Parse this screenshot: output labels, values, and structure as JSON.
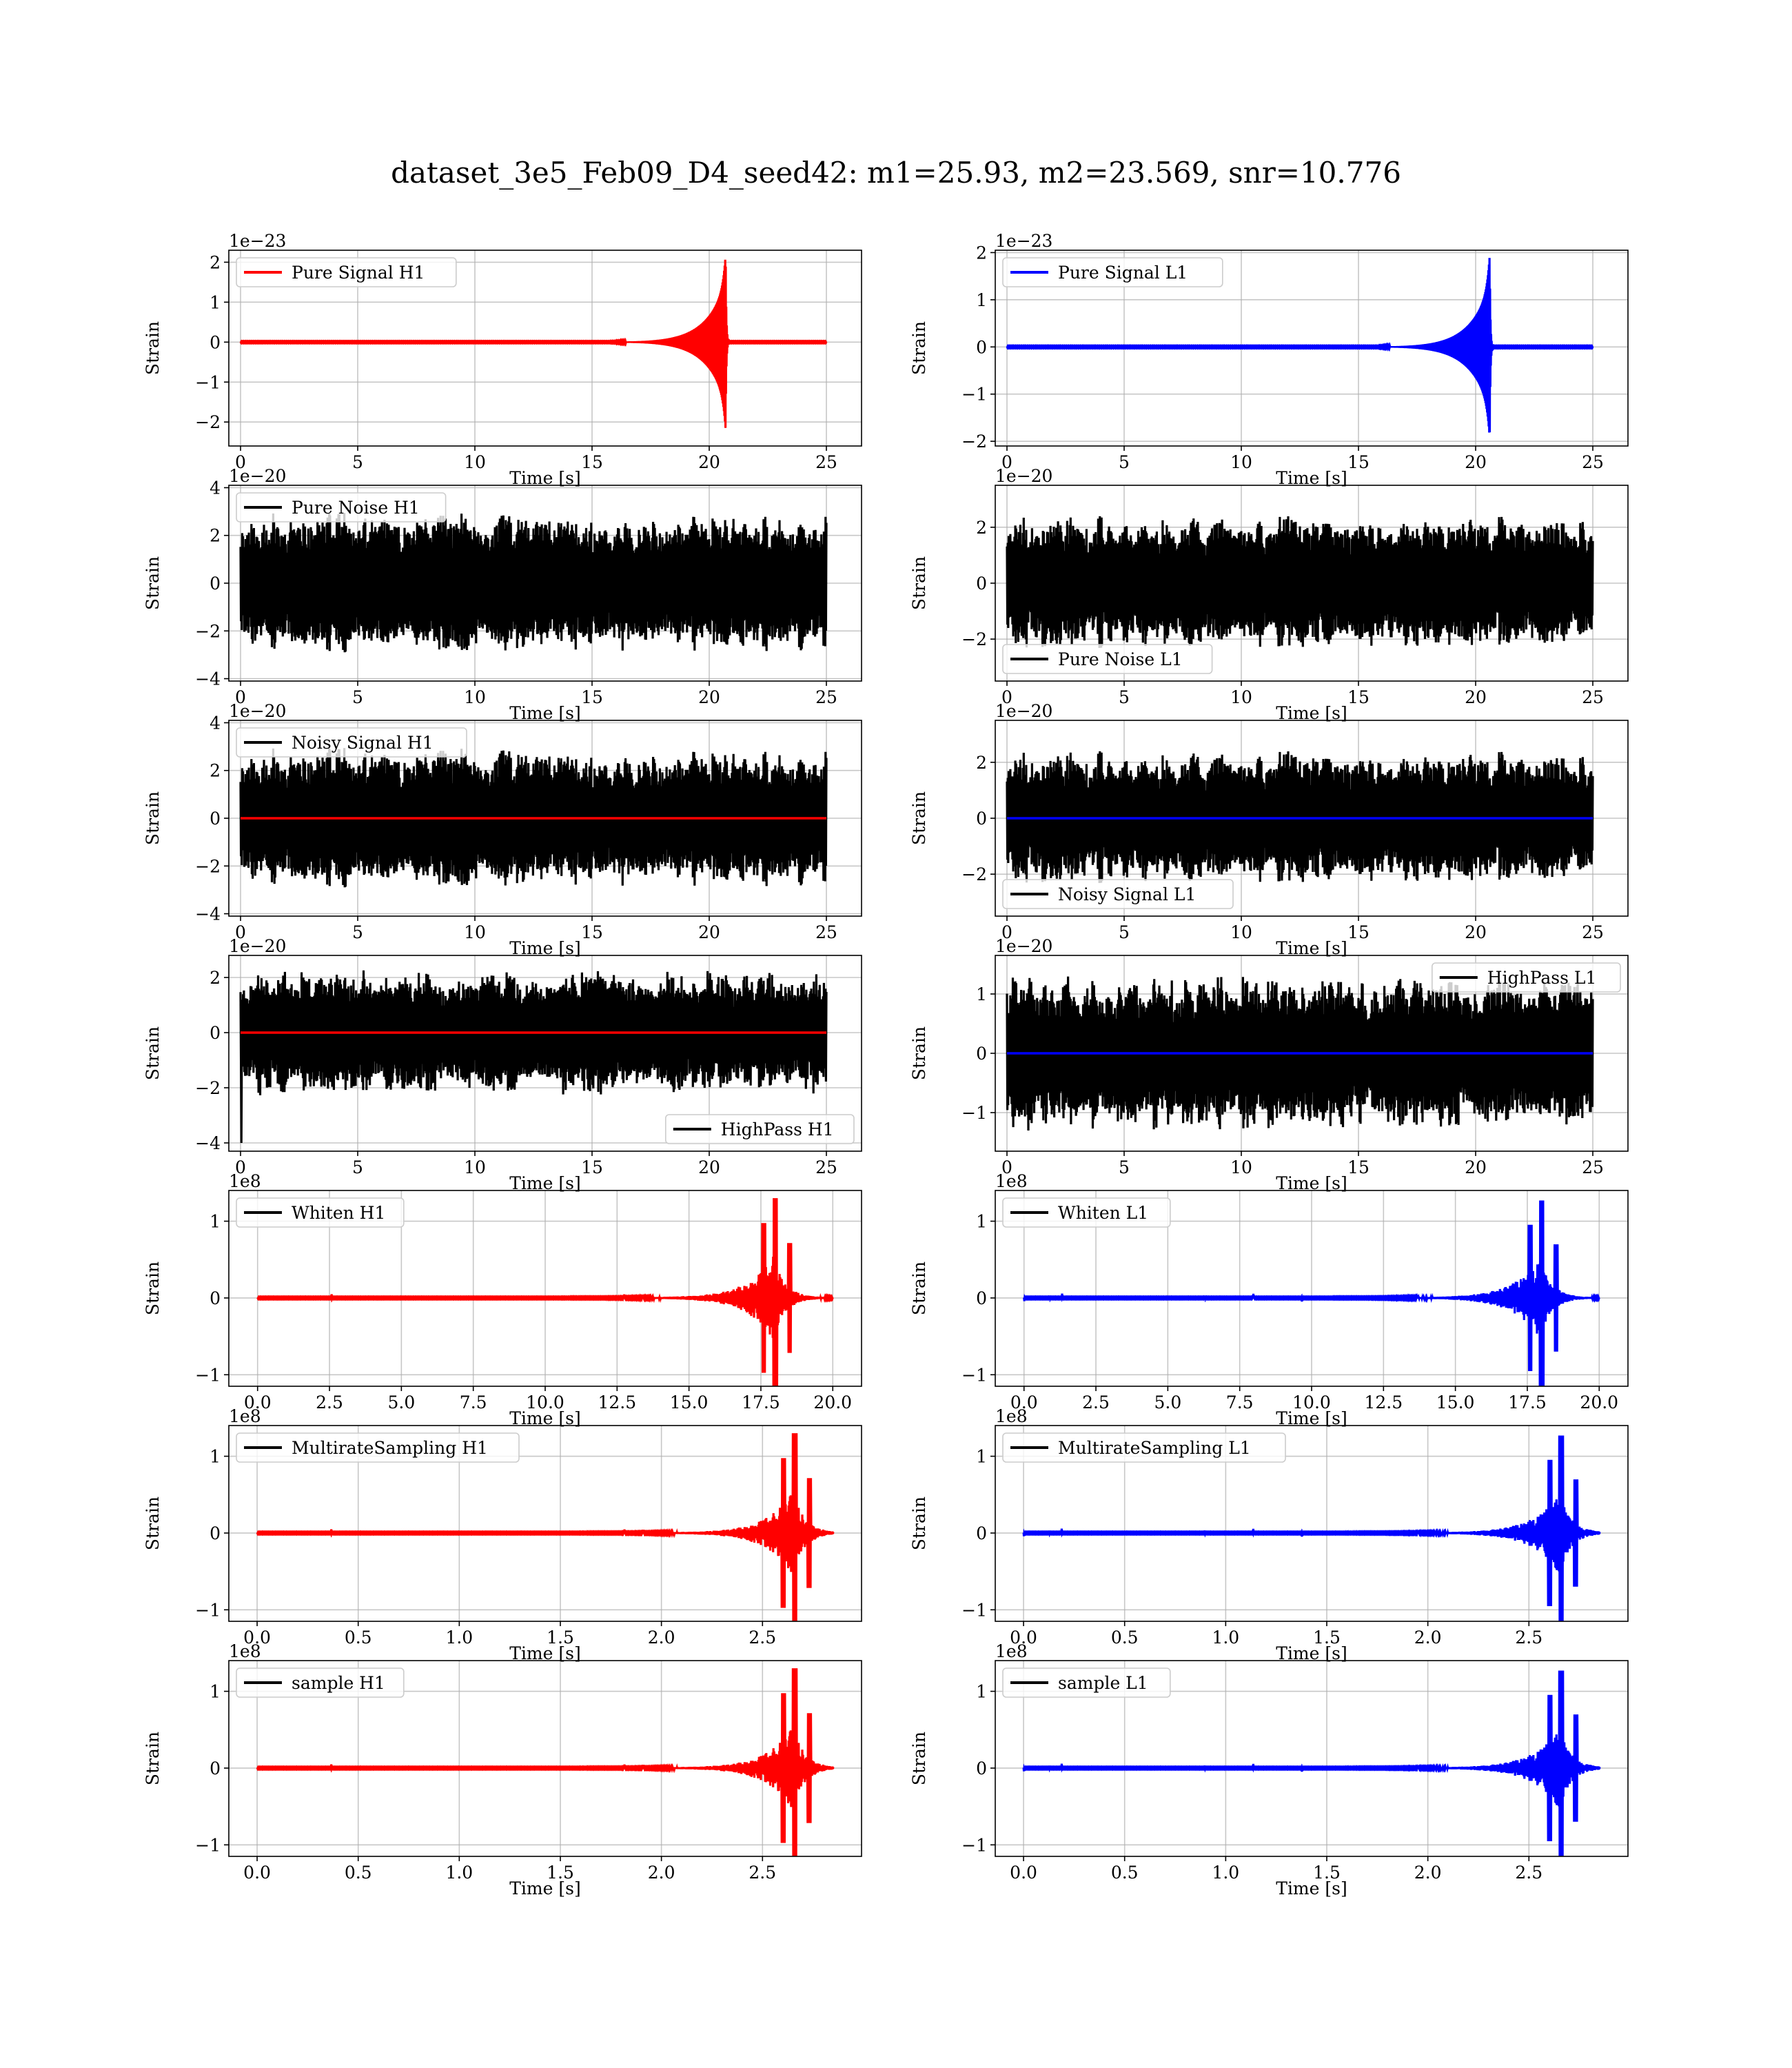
{
  "figure": {
    "title": "dataset_3e5_Feb09_D4_seed42: m1=25.93, m2=23.569, snr=10.776",
    "colors": {
      "H1": "#ff0000",
      "L1": "#0000ff",
      "noise": "#000000"
    }
  },
  "chart_data": [
    {
      "id": "pure-signal-h1",
      "type": "line",
      "ylabel": "Strain",
      "xlabel": "Time [s]",
      "offset_text": "1e−23",
      "legend": "Pure Signal H1",
      "legend_color": "#ff0000",
      "legend_loc": "upper-left",
      "xlim": [
        -0.5,
        26.5
      ],
      "ylim": [
        -2.6,
        2.3
      ],
      "xticks": [
        0,
        5,
        10,
        15,
        20,
        25
      ],
      "xticklabels": [
        "0",
        "5",
        "10",
        "15",
        "20",
        "25"
      ],
      "yticks": [
        -2,
        -1,
        0,
        1,
        2
      ],
      "yticklabels": [
        "−2",
        "−1",
        "0",
        "1",
        "2"
      ],
      "signal": {
        "color": "#ff0000",
        "kind": "chirp",
        "t0": 0,
        "t1": 25,
        "tc": 20.7,
        "peak": 2.2,
        "mode": "chirp-end"
      }
    },
    {
      "id": "pure-signal-l1",
      "type": "line",
      "ylabel": "Strain",
      "xlabel": "Time [s]",
      "offset_text": "1e−23",
      "legend": "Pure Signal L1",
      "legend_color": "#0000ff",
      "legend_loc": "upper-left",
      "xlim": [
        -0.5,
        26.5
      ],
      "ylim": [
        -2.1,
        2.05
      ],
      "xticks": [
        0,
        5,
        10,
        15,
        20,
        25
      ],
      "xticklabels": [
        "0",
        "5",
        "10",
        "15",
        "20",
        "25"
      ],
      "yticks": [
        -2,
        -1,
        0,
        1,
        2
      ],
      "yticklabels": [
        "−2",
        "−1",
        "0",
        "1",
        "2"
      ],
      "signal": {
        "color": "#0000ff",
        "kind": "chirp",
        "t0": 0,
        "t1": 25,
        "tc": 20.6,
        "peak": 1.95,
        "mode": "chirp-end"
      }
    },
    {
      "id": "pure-noise-h1",
      "type": "line",
      "ylabel": "Strain",
      "xlabel": "Time [s]",
      "offset_text": "1e−20",
      "legend": "Pure Noise H1",
      "legend_color": "#000000",
      "legend_loc": "upper-left",
      "xlim": [
        -0.5,
        26.5
      ],
      "ylim": [
        -4.1,
        4.1
      ],
      "xticks": [
        0,
        5,
        10,
        15,
        20,
        25
      ],
      "xticklabels": [
        "0",
        "5",
        "10",
        "15",
        "20",
        "25"
      ],
      "yticks": [
        -4,
        -2,
        0,
        2,
        4
      ],
      "yticklabels": [
        "−4",
        "−2",
        "0",
        "2",
        "4"
      ],
      "noise": {
        "t0": 0,
        "t1": 25,
        "amp": 2.7,
        "seed": 11
      }
    },
    {
      "id": "pure-noise-l1",
      "type": "line",
      "ylabel": "Strain",
      "xlabel": "Time [s]",
      "offset_text": "1e−20",
      "legend": "Pure Noise L1",
      "legend_color": "#000000",
      "legend_loc": "lower-left",
      "xlim": [
        -0.5,
        26.5
      ],
      "ylim": [
        -3.5,
        3.5
      ],
      "xticks": [
        0,
        5,
        10,
        15,
        20,
        25
      ],
      "xticklabels": [
        "0",
        "5",
        "10",
        "15",
        "20",
        "25"
      ],
      "yticks": [
        -2,
        0,
        2
      ],
      "yticklabels": [
        "−2",
        "0",
        "2"
      ],
      "noise": {
        "t0": 0,
        "t1": 25,
        "amp": 2.2,
        "seed": 23
      }
    },
    {
      "id": "noisy-signal-h1",
      "type": "line",
      "ylabel": "Strain",
      "xlabel": "Time [s]",
      "offset_text": "1e−20",
      "legend": "Noisy Signal H1",
      "legend_color": "#000000",
      "legend_loc": "upper-left",
      "xlim": [
        -0.5,
        26.5
      ],
      "ylim": [
        -4.1,
        4.1
      ],
      "xticks": [
        0,
        5,
        10,
        15,
        20,
        25
      ],
      "xticklabels": [
        "0",
        "5",
        "10",
        "15",
        "20",
        "25"
      ],
      "yticks": [
        -4,
        -2,
        0,
        2,
        4
      ],
      "yticklabels": [
        "−4",
        "−2",
        "0",
        "2",
        "4"
      ],
      "noise": {
        "t0": 0,
        "t1": 25,
        "amp": 2.7,
        "seed": 11
      },
      "signal": {
        "color": "#ff0000",
        "kind": "flat",
        "t0": 0,
        "t1": 25
      }
    },
    {
      "id": "noisy-signal-l1",
      "type": "line",
      "ylabel": "Strain",
      "xlabel": "Time [s]",
      "offset_text": "1e−20",
      "legend": "Noisy Signal L1",
      "legend_color": "#000000",
      "legend_loc": "lower-left",
      "xlim": [
        -0.5,
        26.5
      ],
      "ylim": [
        -3.5,
        3.5
      ],
      "xticks": [
        0,
        5,
        10,
        15,
        20,
        25
      ],
      "xticklabels": [
        "0",
        "5",
        "10",
        "15",
        "20",
        "25"
      ],
      "yticks": [
        -2,
        0,
        2
      ],
      "yticklabels": [
        "−2",
        "0",
        "2"
      ],
      "noise": {
        "t0": 0,
        "t1": 25,
        "amp": 2.2,
        "seed": 23
      },
      "signal": {
        "color": "#0000ff",
        "kind": "flat",
        "t0": 0,
        "t1": 25
      }
    },
    {
      "id": "highpass-h1",
      "type": "line",
      "ylabel": "Strain",
      "xlabel": "Time [s]",
      "offset_text": "1e−20",
      "legend": "HighPass H1",
      "legend_color": "#000000",
      "legend_loc": "lower-right",
      "xlim": [
        -0.5,
        26.5
      ],
      "ylim": [
        -4.3,
        2.8
      ],
      "xticks": [
        0,
        5,
        10,
        15,
        20,
        25
      ],
      "xticklabels": [
        "0",
        "5",
        "10",
        "15",
        "20",
        "25"
      ],
      "yticks": [
        -4,
        -2,
        0,
        2
      ],
      "yticklabels": [
        "−4",
        "−2",
        "0",
        "2"
      ],
      "noise": {
        "t0": 0,
        "t1": 25,
        "amp": 2.1,
        "seed": 37,
        "spike": -4.0
      },
      "signal": {
        "color": "#ff0000",
        "kind": "flat",
        "t0": 0,
        "t1": 25
      }
    },
    {
      "id": "highpass-l1",
      "type": "line",
      "ylabel": "Strain",
      "xlabel": "Time [s]",
      "offset_text": "1e−20",
      "legend": "HighPass L1",
      "legend_color": "#000000",
      "legend_loc": "upper-right",
      "xlim": [
        -0.5,
        26.5
      ],
      "ylim": [
        -1.65,
        1.65
      ],
      "xticks": [
        0,
        5,
        10,
        15,
        20,
        25
      ],
      "xticklabels": [
        "0",
        "5",
        "10",
        "15",
        "20",
        "25"
      ],
      "yticks": [
        -1,
        0,
        1
      ],
      "yticklabels": [
        "−1",
        "0",
        "1"
      ],
      "noise": {
        "t0": 0,
        "t1": 25,
        "amp": 1.2,
        "seed": 41
      },
      "signal": {
        "color": "#0000ff",
        "kind": "flat",
        "t0": 0,
        "t1": 25
      }
    },
    {
      "id": "whiten-h1",
      "type": "line",
      "ylabel": "Strain",
      "xlabel": "Time [s]",
      "offset_text": "1e8",
      "legend": "Whiten H1",
      "legend_color": "#000000",
      "legend_loc": "upper-left",
      "xlim": [
        -1,
        21
      ],
      "ylim": [
        -1.15,
        1.4
      ],
      "xticks": [
        0,
        2.5,
        5,
        7.5,
        10,
        12.5,
        15,
        17.5,
        20
      ],
      "xticklabels": [
        "0.0",
        "2.5",
        "5.0",
        "7.5",
        "10.0",
        "12.5",
        "15.0",
        "17.5",
        "20.0"
      ],
      "yticks": [
        -1,
        0,
        1
      ],
      "yticklabels": [
        "−1",
        "0",
        "1"
      ],
      "signal": {
        "color": "#ff0000",
        "kind": "burst",
        "t0": 0,
        "t1": 20,
        "center": 18.0,
        "peak": 1.3,
        "seed": 5
      }
    },
    {
      "id": "whiten-l1",
      "type": "line",
      "ylabel": "Strain",
      "xlabel": "Time [s]",
      "offset_text": "1e8",
      "legend": "Whiten L1",
      "legend_color": "#000000",
      "legend_loc": "upper-left",
      "xlim": [
        -1,
        21
      ],
      "ylim": [
        -1.15,
        1.4
      ],
      "xticks": [
        0,
        2.5,
        5,
        7.5,
        10,
        12.5,
        15,
        17.5,
        20
      ],
      "xticklabels": [
        "0.0",
        "2.5",
        "5.0",
        "7.5",
        "10.0",
        "12.5",
        "15.0",
        "17.5",
        "20.0"
      ],
      "yticks": [
        -1,
        0,
        1
      ],
      "yticklabels": [
        "−1",
        "0",
        "1"
      ],
      "signal": {
        "color": "#0000ff",
        "kind": "burst",
        "t0": 0,
        "t1": 20,
        "center": 18.0,
        "peak": 1.27,
        "seed": 9
      }
    },
    {
      "id": "multiratesampling-h1",
      "type": "line",
      "ylabel": "Strain",
      "xlabel": "Time [s]",
      "offset_text": "1e8",
      "legend": "MultirateSampling H1",
      "legend_color": "#000000",
      "legend_loc": "upper-left",
      "xlim": [
        -0.14,
        2.99
      ],
      "ylim": [
        -1.15,
        1.4
      ],
      "xticks": [
        0,
        0.5,
        1,
        1.5,
        2,
        2.5
      ],
      "xticklabels": [
        "0.0",
        "0.5",
        "1.0",
        "1.5",
        "2.0",
        "2.5"
      ],
      "yticks": [
        -1,
        0,
        1
      ],
      "yticklabels": [
        "−1",
        "0",
        "1"
      ],
      "signal": {
        "color": "#ff0000",
        "kind": "burst",
        "t0": 0,
        "t1": 2.85,
        "center": 2.66,
        "peak": 1.3,
        "seed": 5
      }
    },
    {
      "id": "multiratesampling-l1",
      "type": "line",
      "ylabel": "Strain",
      "xlabel": "Time [s]",
      "offset_text": "1e8",
      "legend": "MultirateSampling L1",
      "legend_color": "#000000",
      "legend_loc": "upper-left",
      "xlim": [
        -0.14,
        2.99
      ],
      "ylim": [
        -1.15,
        1.4
      ],
      "xticks": [
        0,
        0.5,
        1,
        1.5,
        2,
        2.5
      ],
      "xticklabels": [
        "0.0",
        "0.5",
        "1.0",
        "1.5",
        "2.0",
        "2.5"
      ],
      "yticks": [
        -1,
        0,
        1
      ],
      "yticklabels": [
        "−1",
        "0",
        "1"
      ],
      "signal": {
        "color": "#0000ff",
        "kind": "burst",
        "t0": 0,
        "t1": 2.85,
        "center": 2.66,
        "peak": 1.27,
        "seed": 9
      }
    },
    {
      "id": "sample-h1",
      "type": "line",
      "ylabel": "Strain",
      "xlabel": "Time [s]",
      "offset_text": "1e8",
      "legend": "sample H1",
      "legend_color": "#000000",
      "legend_loc": "upper-left",
      "xlim": [
        -0.14,
        2.99
      ],
      "ylim": [
        -1.15,
        1.4
      ],
      "xticks": [
        0,
        0.5,
        1,
        1.5,
        2,
        2.5
      ],
      "xticklabels": [
        "0.0",
        "0.5",
        "1.0",
        "1.5",
        "2.0",
        "2.5"
      ],
      "yticks": [
        -1,
        0,
        1
      ],
      "yticklabels": [
        "−1",
        "0",
        "1"
      ],
      "signal": {
        "color": "#ff0000",
        "kind": "burst",
        "t0": 0,
        "t1": 2.85,
        "center": 2.66,
        "peak": 1.3,
        "seed": 5
      }
    },
    {
      "id": "sample-l1",
      "type": "line",
      "ylabel": "Strain",
      "xlabel": "Time [s]",
      "offset_text": "1e8",
      "legend": "sample L1",
      "legend_color": "#000000",
      "legend_loc": "upper-left",
      "xlim": [
        -0.14,
        2.99
      ],
      "ylim": [
        -1.15,
        1.4
      ],
      "xticks": [
        0,
        0.5,
        1,
        1.5,
        2,
        2.5
      ],
      "xticklabels": [
        "0.0",
        "0.5",
        "1.0",
        "1.5",
        "2.0",
        "2.5"
      ],
      "yticks": [
        -1,
        0,
        1
      ],
      "yticklabels": [
        "−1",
        "0",
        "1"
      ],
      "signal": {
        "color": "#0000ff",
        "kind": "burst",
        "t0": 0,
        "t1": 2.85,
        "center": 2.66,
        "peak": 1.27,
        "seed": 9
      }
    }
  ]
}
